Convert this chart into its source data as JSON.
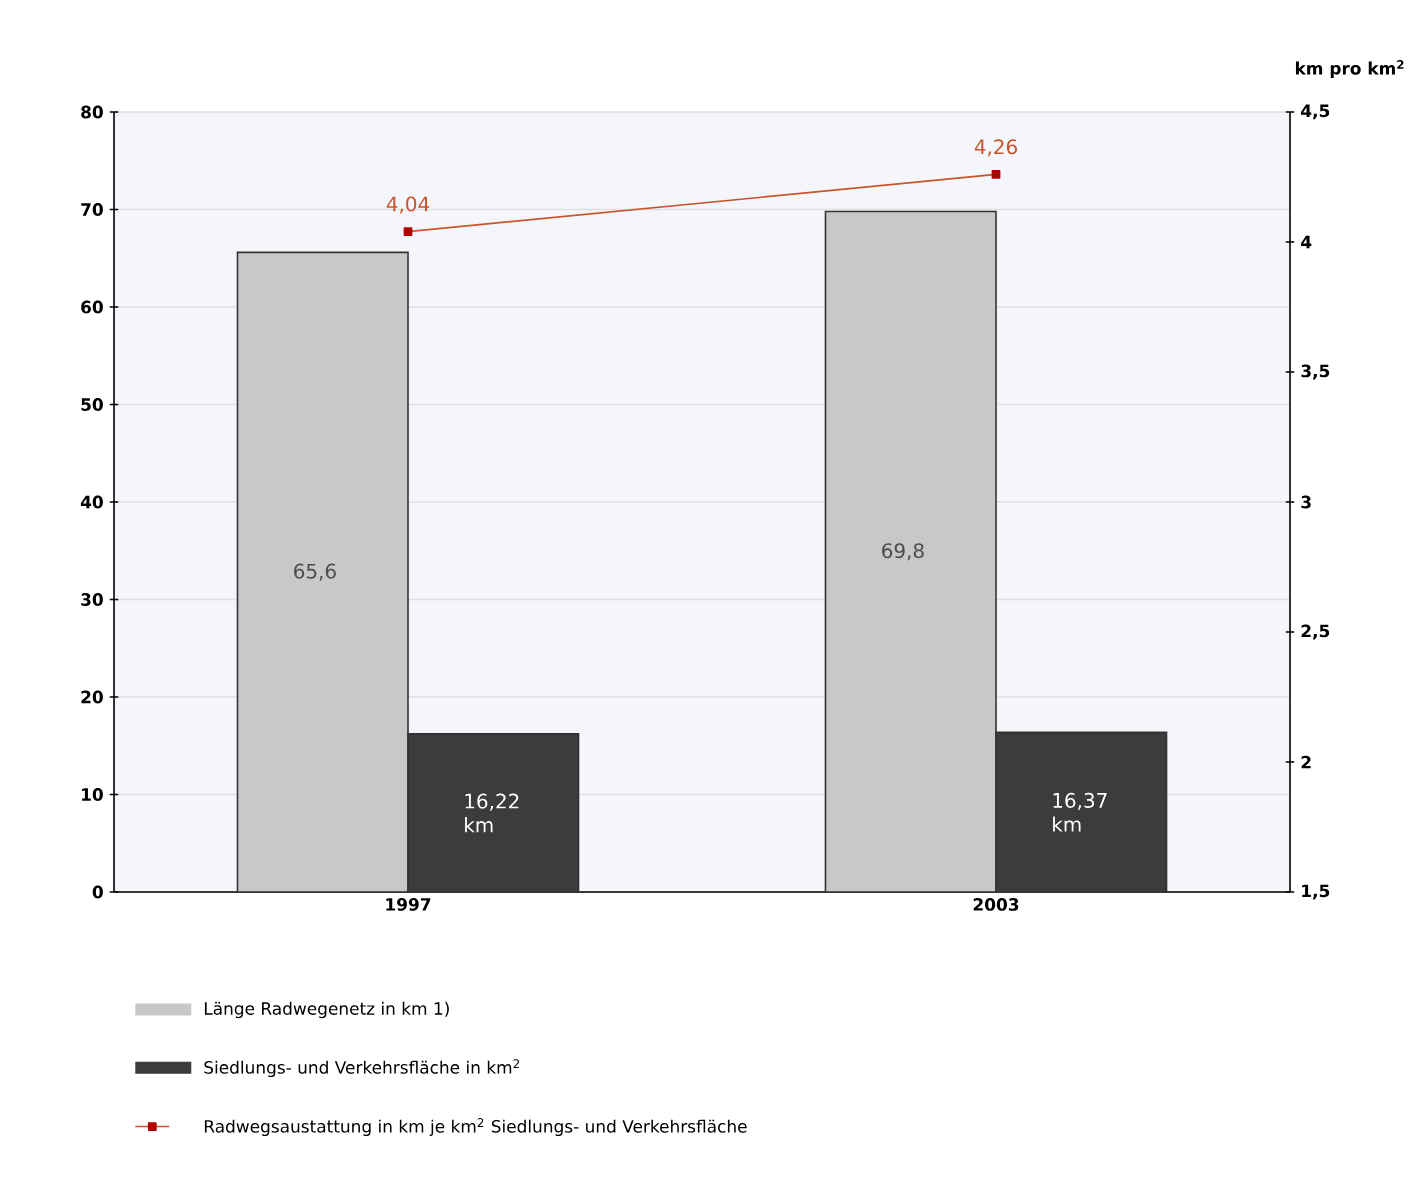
{
  "chart_data": {
    "type": "bar",
    "categories": [
      "1997",
      "2003"
    ],
    "ylim": [
      0,
      80
    ],
    "yticks": [
      0,
      10,
      20,
      30,
      40,
      50,
      60,
      70,
      80
    ],
    "y2lim": [
      1.5,
      4.5
    ],
    "y2ticks": [
      {
        "value": 1.5,
        "label": "1,5"
      },
      {
        "value": 2,
        "label": "2"
      },
      {
        "value": 2.5,
        "label": "2,5"
      },
      {
        "value": 3,
        "label": "3"
      },
      {
        "value": 3.5,
        "label": "3,5"
      },
      {
        "value": 4,
        "label": "4"
      },
      {
        "value": 4.5,
        "label": "4,5"
      }
    ],
    "y2label": "km pro km$^{2}$",
    "grid": "y",
    "legend": "bottom",
    "series": [
      {
        "name": "Länge Radwegenetz in km 1)",
        "color": "#c9c8c9",
        "values": [
          65.6,
          69.8
        ],
        "value_labels": [
          "65,6",
          "69,8"
        ]
      },
      {
        "name": "Siedlungs- und Verkehrsfläche in km$^{2}$",
        "color": "#3d3b3c",
        "values": [
          16.22,
          16.37
        ],
        "value_labels": [
          "16,22 km",
          "16,37 km"
        ]
      },
      {
        "name": "Radwegsaustattung in km je km$^{2}$ Siedlungs- und Verkehrsfläche",
        "type": "line",
        "axis": "y2",
        "color": "#c8542a",
        "marker": "square",
        "values": [
          4.04,
          4.26
        ],
        "value_labels": [
          "4,04",
          "4,26"
        ]
      }
    ]
  }
}
